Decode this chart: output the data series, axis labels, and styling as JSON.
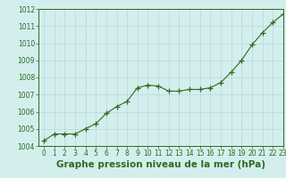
{
  "x": [
    0,
    1,
    2,
    3,
    4,
    5,
    6,
    7,
    8,
    9,
    10,
    11,
    12,
    13,
    14,
    15,
    16,
    17,
    18,
    19,
    20,
    21,
    22,
    23
  ],
  "y": [
    1004.3,
    1004.7,
    1004.7,
    1004.7,
    1005.0,
    1005.3,
    1005.9,
    1006.3,
    1006.6,
    1007.4,
    1007.55,
    1007.5,
    1007.2,
    1007.2,
    1007.3,
    1007.3,
    1007.4,
    1007.7,
    1008.3,
    1009.0,
    1009.9,
    1010.6,
    1011.2,
    1011.7
  ],
  "line_color": "#2d6b1e",
  "marker": "+",
  "marker_size": 4,
  "marker_color": "#2d6b1e",
  "bg_color": "#d4eeee",
  "grid_color": "#b8d8d8",
  "xlabel": "Graphe pression niveau de la mer (hPa)",
  "xlabel_fontsize": 7.5,
  "xlabel_color": "#2d6b1e",
  "ylim": [
    1004,
    1012
  ],
  "xlim": [
    -0.5,
    23
  ],
  "yticks": [
    1004,
    1005,
    1006,
    1007,
    1008,
    1009,
    1010,
    1011,
    1012
  ],
  "xticks": [
    0,
    1,
    2,
    3,
    4,
    5,
    6,
    7,
    8,
    9,
    10,
    11,
    12,
    13,
    14,
    15,
    16,
    17,
    18,
    19,
    20,
    21,
    22,
    23
  ],
  "tick_fontsize": 5.5,
  "tick_color": "#2d6b1e",
  "line_width": 0.8,
  "spine_color": "#2d6b1e"
}
